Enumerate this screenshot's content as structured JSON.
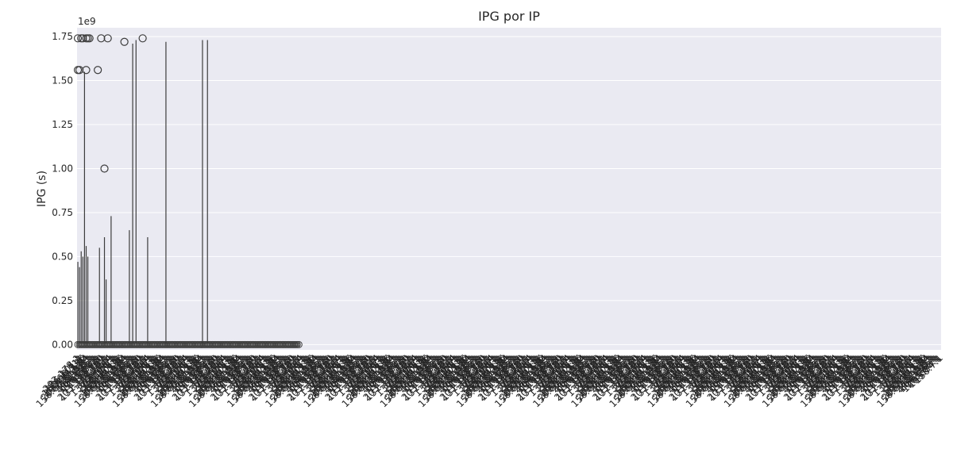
{
  "chart_data": {
    "type": "box",
    "title": "IPG por IP",
    "xlabel": "",
    "ylabel": "IPG (s)",
    "y_offset_text": "1e9",
    "ylim": [
      -0.03,
      1.8
    ],
    "y_ticks": [
      0.0,
      0.25,
      0.5,
      0.75,
      1.0,
      1.25,
      1.5,
      1.75
    ],
    "y_tick_labels": [
      "0.00",
      "0.25",
      "0.50",
      "0.75",
      "1.00",
      "1.25",
      "1.50",
      "1.75"
    ],
    "y_unit_multiplier": 1000000000,
    "grid": true,
    "style": "whitegrid-dark-background",
    "colors": {
      "background": "#eaeaf2",
      "grid": "#ffffff",
      "box_line": "#3d3d3d",
      "text": "#262626"
    },
    "category_count": 520,
    "categories_visible": [
      "203.178.1",
      "156.101.1",
      "150.66.111",
      "203.10.136",
      "203.178.130",
      "150.66.111.34",
      "221.97.1",
      "203.178.1",
      "114.118.1",
      "104.157.1",
      "163.93.1",
      "128.206.1",
      "193.84.1",
      "150.7.1",
      "203.178.160",
      "131.113.151",
      "14.18.1",
      "85.76.1",
      "157.1.1",
      "136.240.44",
      "150.61.1",
      "203.178.1",
      "200.1.1"
    ],
    "series": [
      {
        "whisker_tops": [
          {
            "x": 0,
            "y": 0.47
          },
          {
            "x": 1,
            "y": 0.44
          },
          {
            "x": 2,
            "y": 0.53
          },
          {
            "x": 3,
            "y": 0.5
          },
          {
            "x": 4,
            "y": 1.55
          },
          {
            "x": 5,
            "y": 0.56
          },
          {
            "x": 6,
            "y": 0.5
          },
          {
            "x": 13,
            "y": 0.55
          },
          {
            "x": 16,
            "y": 0.61
          },
          {
            "x": 17,
            "y": 0.37
          },
          {
            "x": 20,
            "y": 0.73
          },
          {
            "x": 31,
            "y": 0.65
          },
          {
            "x": 33,
            "y": 1.71
          },
          {
            "x": 35,
            "y": 1.73
          },
          {
            "x": 42,
            "y": 0.61
          },
          {
            "x": 53,
            "y": 1.72
          },
          {
            "x": 75,
            "y": 1.73
          },
          {
            "x": 78,
            "y": 1.73
          }
        ],
        "outliers": [
          {
            "x": 0,
            "y": 1.74
          },
          {
            "x": 0,
            "y": 1.56
          },
          {
            "x": 1,
            "y": 1.56
          },
          {
            "x": 2,
            "y": 1.74
          },
          {
            "x": 3,
            "y": 1.74
          },
          {
            "x": 5,
            "y": 1.74
          },
          {
            "x": 5,
            "y": 1.56
          },
          {
            "x": 6,
            "y": 1.74
          },
          {
            "x": 7,
            "y": 1.74
          },
          {
            "x": 12,
            "y": 1.56
          },
          {
            "x": 14,
            "y": 1.74
          },
          {
            "x": 16,
            "y": 1.0
          },
          {
            "x": 18,
            "y": 1.74
          },
          {
            "x": 28,
            "y": 1.72
          },
          {
            "x": 39,
            "y": 1.74
          }
        ],
        "baseline_value": 0.0,
        "baseline_span_categories": 134
      }
    ]
  }
}
